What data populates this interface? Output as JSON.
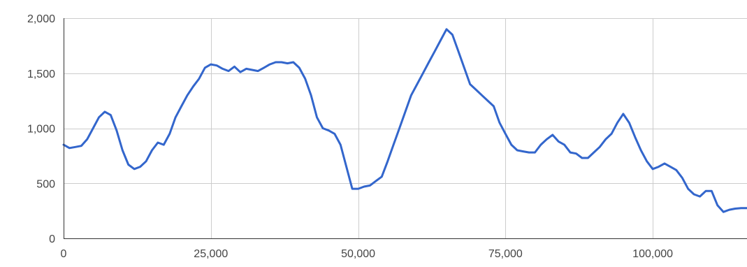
{
  "chart_data": {
    "type": "line",
    "title": "",
    "xlabel": "",
    "ylabel": "",
    "xlim": [
      0,
      116000
    ],
    "ylim": [
      0,
      2000
    ],
    "xticks": [
      0,
      25000,
      50000,
      75000,
      100000
    ],
    "xtick_labels": [
      "0",
      "25,000",
      "50,000",
      "75,000",
      "100,000"
    ],
    "yticks": [
      0,
      500,
      1000,
      1500,
      2000
    ],
    "ytick_labels": [
      "0",
      "500",
      "1,000",
      "1,500",
      "2,000"
    ],
    "grid": true,
    "legend": "none",
    "series": [
      {
        "color": "#3366cc",
        "x": [
          0,
          1000,
          2000,
          3000,
          4000,
          5000,
          6000,
          7000,
          8000,
          9000,
          10000,
          11000,
          12000,
          13000,
          14000,
          15000,
          16000,
          17000,
          18000,
          19000,
          20000,
          21000,
          22000,
          23000,
          24000,
          25000,
          26000,
          27000,
          28000,
          29000,
          30000,
          31000,
          32000,
          33000,
          34000,
          35000,
          36000,
          37000,
          38000,
          39000,
          40000,
          41000,
          42000,
          43000,
          44000,
          45000,
          46000,
          47000,
          48000,
          49000,
          50000,
          51000,
          52000,
          53000,
          54000,
          55000,
          56000,
          57000,
          58000,
          59000,
          60000,
          61000,
          62000,
          63000,
          64000,
          65000,
          66000,
          67000,
          68000,
          69000,
          70000,
          71000,
          72000,
          73000,
          74000,
          75000,
          76000,
          77000,
          78000,
          79000,
          80000,
          81000,
          82000,
          83000,
          84000,
          85000,
          86000,
          87000,
          88000,
          89000,
          90000,
          91000,
          92000,
          93000,
          94000,
          95000,
          96000,
          97000,
          98000,
          99000,
          100000,
          101000,
          102000,
          103000,
          104000,
          105000,
          106000,
          107000,
          108000,
          109000,
          110000,
          111000,
          112000,
          113000,
          114000,
          115000,
          116000
        ],
        "values": [
          850,
          820,
          830,
          840,
          900,
          1000,
          1100,
          1150,
          1120,
          980,
          800,
          670,
          630,
          650,
          700,
          800,
          870,
          850,
          950,
          1100,
          1200,
          1300,
          1380,
          1450,
          1550,
          1580,
          1570,
          1540,
          1520,
          1560,
          1510,
          1540,
          1530,
          1520,
          1550,
          1580,
          1600,
          1600,
          1590,
          1600,
          1550,
          1450,
          1300,
          1100,
          1000,
          980,
          950,
          850,
          650,
          450,
          450,
          470,
          480,
          520,
          560,
          700,
          850,
          1000,
          1150,
          1300,
          1400,
          1500,
          1600,
          1700,
          1800,
          1900,
          1850,
          1700,
          1550,
          1400,
          1350,
          1300,
          1250,
          1200,
          1050,
          950,
          850,
          800,
          790,
          780,
          780,
          850,
          900,
          940,
          880,
          850,
          780,
          770,
          730,
          730,
          780,
          830,
          900,
          950,
          1050,
          1130,
          1050,
          920,
          800,
          700,
          630,
          650,
          680,
          650,
          620,
          550,
          450,
          400,
          380,
          430,
          430,
          300,
          240,
          260,
          270,
          275,
          275
        ]
      }
    ]
  }
}
